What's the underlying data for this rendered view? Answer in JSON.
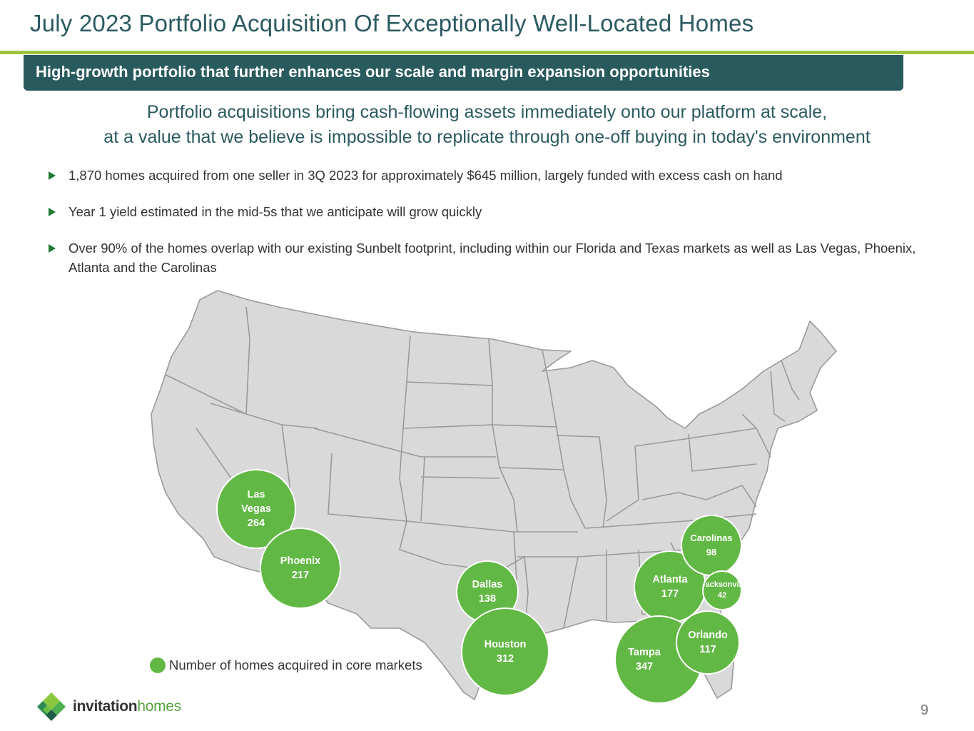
{
  "title": "July 2023 Portfolio Acquisition Of Exceptionally Well-Located Homes",
  "banner": "High-growth portfolio that further enhances our scale and margin expansion opportunities",
  "headline": {
    "line1": "Portfolio acquisitions bring cash-flowing assets immediately onto our platform at scale,",
    "line2": "at a value that we believe is impossible to replicate through one-off buying in today's environment"
  },
  "bullets": [
    "1,870 homes acquired from one seller in 3Q 2023 for approximately $645 million, largely funded with excess cash on hand",
    "Year 1 yield estimated in the mid-5s that we anticipate will grow quickly",
    "Over 90% of the homes overlap with our existing Sunbelt footprint, including within our Florida and Texas markets as well as Las Vegas, Phoenix, Atlanta and the Carolinas"
  ],
  "markets": [
    {
      "name": "Las Vegas",
      "name_lines": [
        "Las",
        "Vegas"
      ],
      "homes": "264"
    },
    {
      "name": "Phoenix",
      "name_lines": [
        "Phoenix"
      ],
      "homes": "217"
    },
    {
      "name": "Dallas",
      "name_lines": [
        "Dallas"
      ],
      "homes": "138"
    },
    {
      "name": "Houston",
      "name_lines": [
        "Houston"
      ],
      "homes": "312"
    },
    {
      "name": "Atlanta",
      "name_lines": [
        "Atlanta"
      ],
      "homes": "177"
    },
    {
      "name": "Carolinas",
      "name_lines": [
        "Carolinas"
      ],
      "homes": "98"
    },
    {
      "name": "Jacksonville",
      "name_lines": [
        "Jacksonvill"
      ],
      "homes": "42"
    },
    {
      "name": "Orlando",
      "name_lines": [
        "Orlando"
      ],
      "homes": "117"
    },
    {
      "name": "Tampa",
      "name_lines": [
        "Tampa"
      ],
      "homes": "347"
    }
  ],
  "legend": "Number of homes acquired in core markets",
  "logo": {
    "word1": "invitation",
    "word2": "homes"
  },
  "page_number": "9",
  "colors": {
    "title": "#2b5a61",
    "accent_rule": "#9cc63b",
    "banner": "#285a5e",
    "bubble": "#62b844",
    "bullet_marker": "#1e7b31",
    "map_fill": "#d9d9d9",
    "map_stroke": "#9a9a9a"
  }
}
